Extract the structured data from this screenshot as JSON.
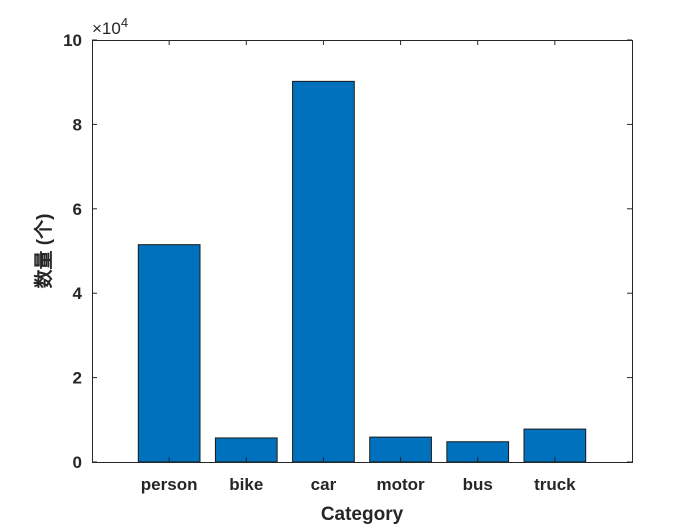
{
  "chart_data": {
    "type": "bar",
    "categories": [
      "person",
      "bike",
      "car",
      "motor",
      "bus",
      "truck"
    ],
    "values": [
      51500,
      5700,
      90200,
      5900,
      4800,
      7800
    ],
    "xlabel": "Category",
    "ylabel": "数量 (个)",
    "ylim": [
      0,
      100000
    ],
    "yticks": [
      0,
      2,
      4,
      6,
      8,
      10
    ],
    "y_exponent_times": "×10",
    "y_exponent_power": "4",
    "y_scale": 10000,
    "bar_color": "#0072BD",
    "grid": false
  }
}
